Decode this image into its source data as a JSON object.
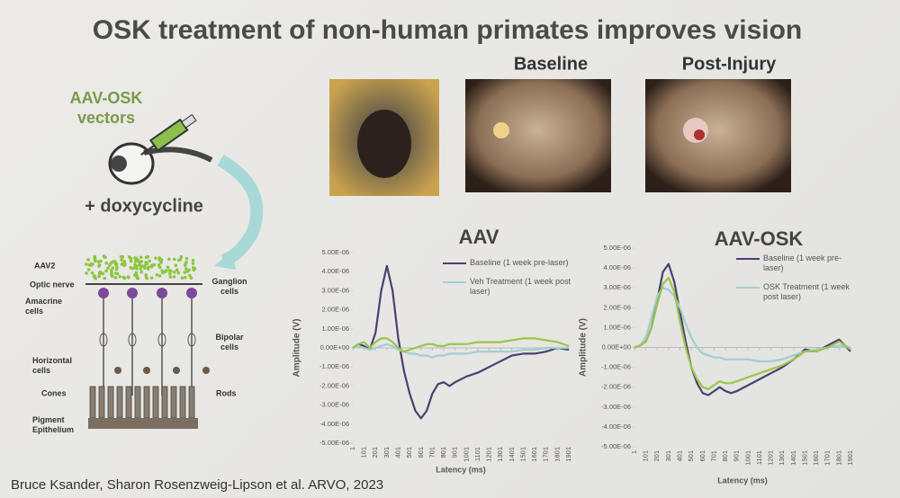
{
  "slide": {
    "title": "OSK treatment of non-human primates improves vision",
    "image_labels": [
      "Baseline",
      "Post-Injury"
    ],
    "vector_label": [
      "AAV-OSK",
      "vectors"
    ],
    "drug_label": "+ doxycycline",
    "retina_labels": [
      "AAV2",
      "Optic nerve",
      "Ganglion cells",
      "Amacrine cells",
      "Bipolar cells",
      "Horizontal cells",
      "Cones",
      "Rods",
      "Pigment Epithelium"
    ],
    "citation": "Bruce Ksander, Sharon Rosenzweig-Lipson et al. ARVO, 2023"
  },
  "chart_data": [
    {
      "type": "line",
      "title": "AAV",
      "ylabel": "Amplitude (V)",
      "xlabel": "Latency (ms)",
      "x": [
        1,
        51,
        101,
        151,
        201,
        251,
        301,
        351,
        401,
        451,
        501,
        551,
        601,
        651,
        701,
        751,
        801,
        851,
        901,
        1001,
        1101,
        1201,
        1301,
        1401,
        1501,
        1601,
        1701,
        1801,
        1901
      ],
      "series": [
        {
          "name": "Baseline (1 week pre-laser)",
          "color": "#4b4070",
          "values": [
            0,
            2e-07,
            1e-07,
            -1e-07,
            8e-07,
            3e-06,
            4.3e-06,
            3e-06,
            5e-07,
            -1.2e-06,
            -2.4e-06,
            -3.3e-06,
            -3.7e-06,
            -3.3e-06,
            -2.4e-06,
            -1.9e-06,
            -1.8e-06,
            -2e-06,
            -1.8e-06,
            -1.5e-06,
            -1.3e-06,
            -1e-06,
            -7e-07,
            -4e-07,
            -3e-07,
            -3e-07,
            -2e-07,
            0,
            -1e-07
          ]
        },
        {
          "name": "Veh Treatment (1 week post laser)",
          "color": "#9fcfd2",
          "values": [
            0,
            1e-07,
            0,
            -1e-07,
            0,
            1e-07,
            2e-07,
            1e-07,
            -1e-07,
            -2e-07,
            -3e-07,
            -3e-07,
            -4e-07,
            -4e-07,
            -5e-07,
            -4e-07,
            -4e-07,
            -3e-07,
            -3e-07,
            -3e-07,
            -2e-07,
            -2e-07,
            -2e-07,
            -2e-07,
            -1e-07,
            -1e-07,
            0,
            0,
            0
          ]
        },
        {
          "color": "#9cc54a",
          "values": [
            0,
            2e-07,
            3e-07,
            0,
            3e-07,
            5e-07,
            5e-07,
            3e-07,
            0,
            -2e-07,
            -1e-07,
            0,
            1e-07,
            2e-07,
            2e-07,
            1e-07,
            1e-07,
            2e-07,
            2e-07,
            2e-07,
            3e-07,
            3e-07,
            3e-07,
            4e-07,
            5e-07,
            5e-07,
            4e-07,
            3e-07,
            1e-07
          ]
        }
      ],
      "xlim": [
        1,
        1901
      ],
      "xticks": [
        1,
        101,
        201,
        301,
        401,
        501,
        601,
        701,
        801,
        901,
        1001,
        1101,
        1201,
        1301,
        1401,
        1501,
        1601,
        1701,
        1801,
        1901
      ],
      "ylim": [
        -5e-06,
        5e-06
      ],
      "yticks": [
        {
          "value": -5e-06,
          "label": "-5.00E-06"
        },
        {
          "value": -4e-06,
          "label": "-4.00E-06"
        },
        {
          "value": -3e-06,
          "label": "-3.00E-06"
        },
        {
          "value": -2e-06,
          "label": "-2.00E-06"
        },
        {
          "value": -1e-06,
          "label": "-1.00E-06"
        },
        {
          "value": 0,
          "label": "0.00E+00"
        },
        {
          "value": 1e-06,
          "label": "1.00E-06"
        },
        {
          "value": 2e-06,
          "label": "2.00E-06"
        },
        {
          "value": 3e-06,
          "label": "3.00E-06"
        },
        {
          "value": 4e-06,
          "label": "4.00E-06"
        },
        {
          "value": 5e-06,
          "label": "5.00E-06"
        }
      ]
    },
    {
      "type": "line",
      "title": "AAV-OSK",
      "ylabel": "Amplitude (V)",
      "xlabel": "Latency (ms)",
      "x": [
        1,
        51,
        101,
        151,
        201,
        251,
        301,
        351,
        401,
        451,
        501,
        551,
        601,
        651,
        701,
        751,
        801,
        851,
        901,
        1001,
        1101,
        1201,
        1301,
        1401,
        1501,
        1601,
        1701,
        1801,
        1901
      ],
      "series": [
        {
          "name": "Baseline (1 week pre-laser)",
          "color": "#4b4070",
          "values": [
            0,
            1e-07,
            3e-07,
            1e-06,
            2.4e-06,
            3.8e-06,
            4.2e-06,
            3.3e-06,
            1.8e-06,
            3e-07,
            -1e-06,
            -1.8e-06,
            -2.3e-06,
            -2.4e-06,
            -2.2e-06,
            -2e-06,
            -2.2e-06,
            -2.3e-06,
            -2.2e-06,
            -1.9e-06,
            -1.6e-06,
            -1.3e-06,
            -1e-06,
            -6e-07,
            -1e-07,
            -2e-07,
            1e-07,
            4e-07,
            -2e-07
          ]
        },
        {
          "name": "OSK Treatment (1 week post laser)",
          "color": "#9fcfd2",
          "values": [
            0,
            1e-07,
            5e-07,
            1.5e-06,
            2.6e-06,
            3e-06,
            2.9e-06,
            2.6e-06,
            2e-06,
            1.2e-06,
            5e-07,
            0,
            -3e-07,
            -4e-07,
            -5e-07,
            -5e-07,
            -6e-07,
            -6e-07,
            -6e-07,
            -6e-07,
            -7e-07,
            -7e-07,
            -6e-07,
            -4e-07,
            -2e-07,
            -1e-07,
            0,
            1e-07,
            0
          ]
        },
        {
          "color": "#9cc54a",
          "values": [
            0,
            1e-07,
            3e-07,
            1e-06,
            2.2e-06,
            3.2e-06,
            3.5e-06,
            2.8e-06,
            1.3e-06,
            0,
            -1e-06,
            -1.6e-06,
            -2e-06,
            -2.1e-06,
            -1.9e-06,
            -1.7e-06,
            -1.8e-06,
            -1.8e-06,
            -1.7e-06,
            -1.5e-06,
            -1.3e-06,
            -1.1e-06,
            -9e-07,
            -6e-07,
            -2e-07,
            -2e-07,
            0,
            3e-07,
            -1e-07
          ]
        }
      ],
      "xlim": [
        1,
        1901
      ],
      "xticks": [
        1,
        101,
        201,
        301,
        401,
        501,
        601,
        701,
        801,
        901,
        1001,
        1101,
        1201,
        1301,
        1401,
        1501,
        1601,
        1701,
        1801,
        1901
      ],
      "ylim": [
        -5e-06,
        5e-06
      ],
      "yticks": [
        {
          "value": -5e-06,
          "label": "-5.00E-06"
        },
        {
          "value": -4e-06,
          "label": "-4.00E-06"
        },
        {
          "value": -3e-06,
          "label": "-3.00E-06"
        },
        {
          "value": -2e-06,
          "label": "-2.00E-06"
        },
        {
          "value": -1e-06,
          "label": "-1.00E-06"
        },
        {
          "value": 0,
          "label": "0.00E+00"
        },
        {
          "value": 1e-06,
          "label": "1.00E-06"
        },
        {
          "value": 2e-06,
          "label": "2.00E-06"
        },
        {
          "value": 3e-06,
          "label": "3.00E-06"
        },
        {
          "value": 4e-06,
          "label": "4.00E-06"
        },
        {
          "value": 5e-06,
          "label": "5.00E-06"
        }
      ]
    }
  ]
}
